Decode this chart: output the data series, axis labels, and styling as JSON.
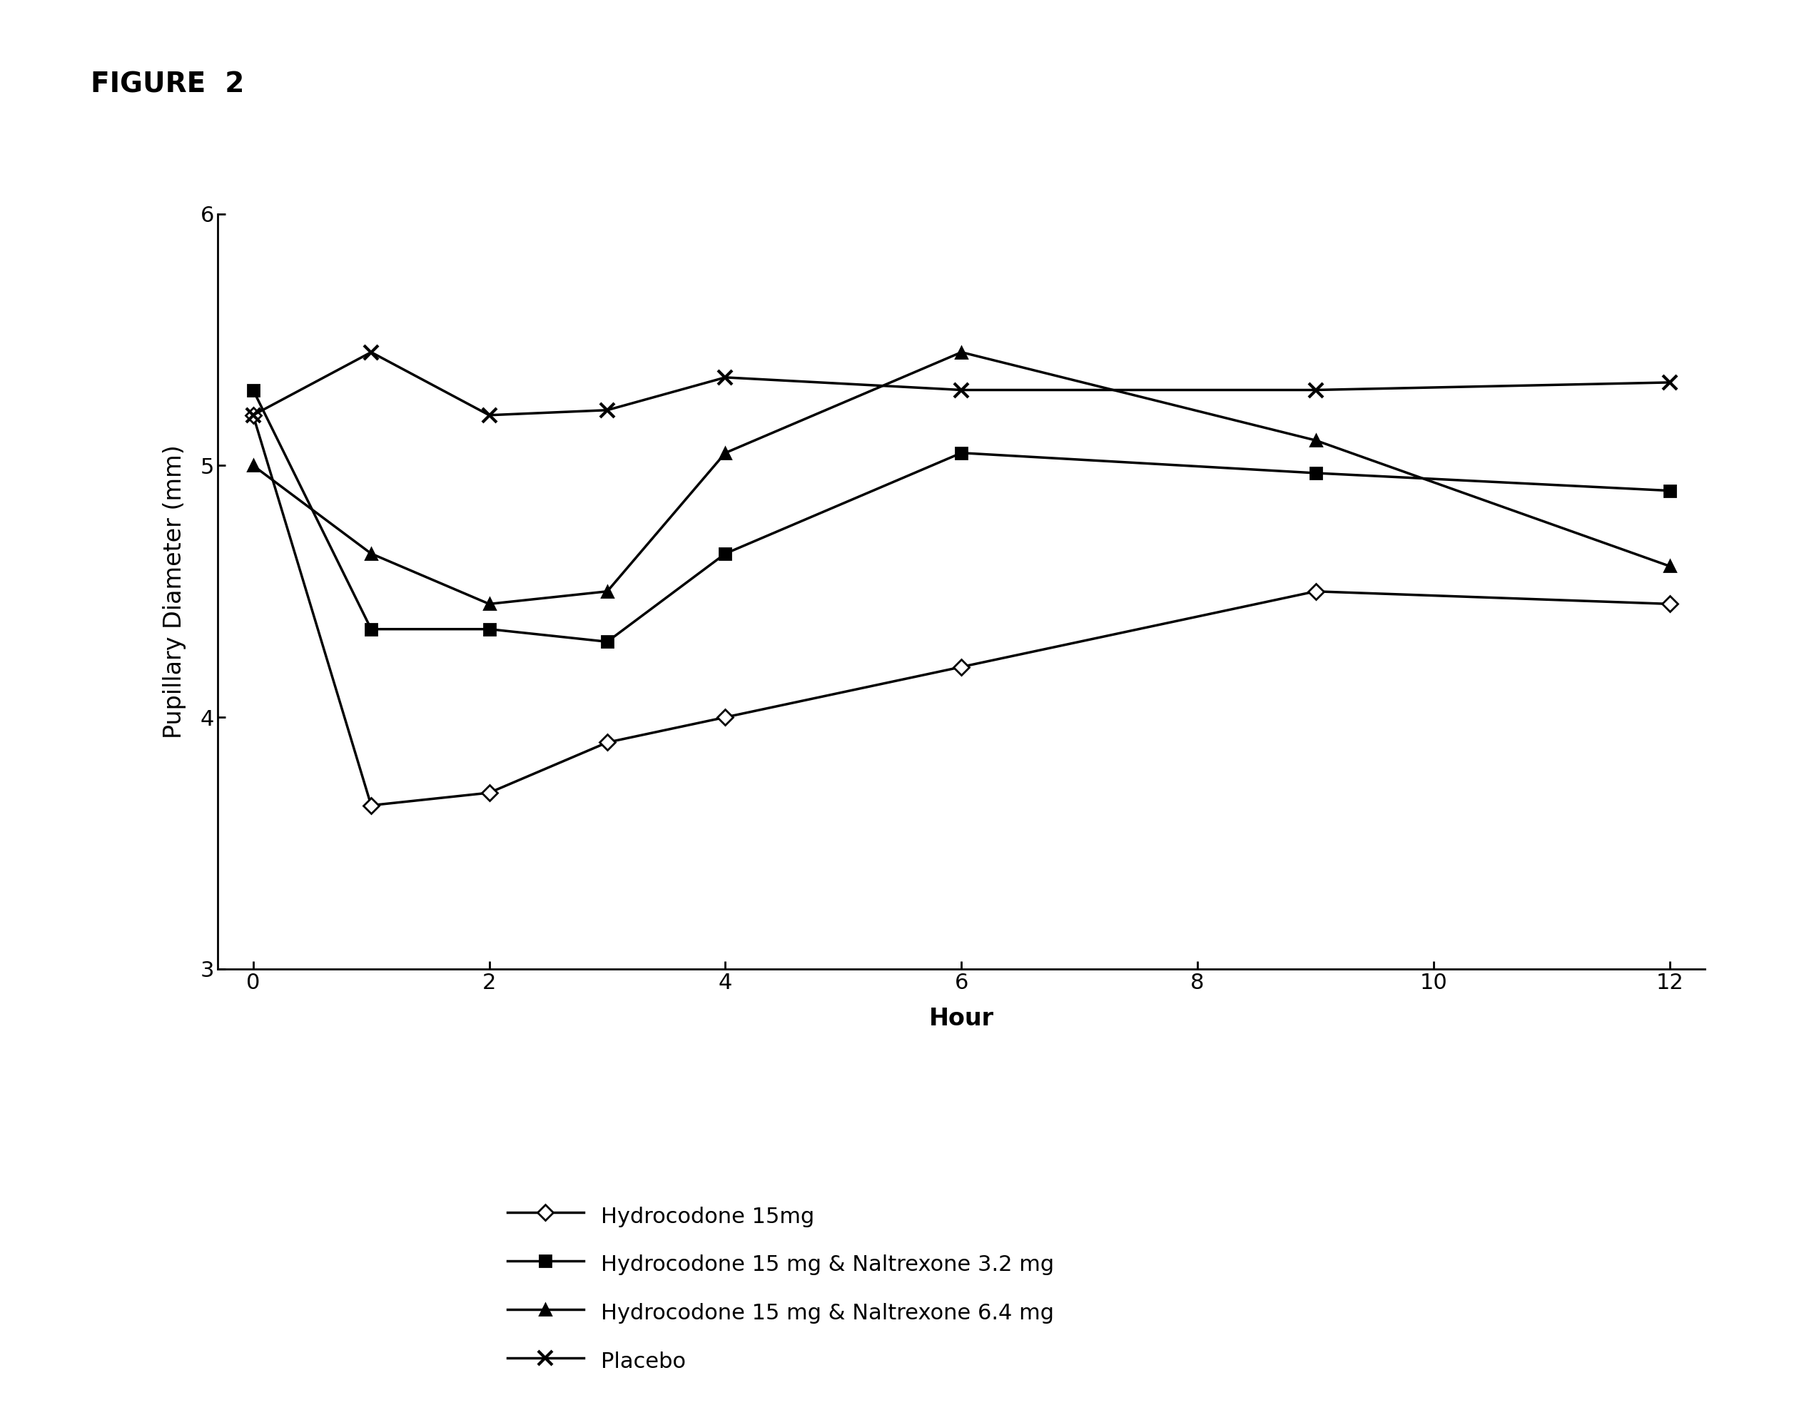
{
  "title": "FIGURE  2",
  "xlabel": "Hour",
  "ylabel": "Pupillary Diameter (mm)",
  "x_ticks": [
    0,
    2,
    4,
    6,
    8,
    10,
    12
  ],
  "xlim": [
    -0.3,
    12.3
  ],
  "ylim": [
    3,
    6
  ],
  "y_ticks": [
    3,
    4,
    5,
    6
  ],
  "series": [
    {
      "label": "Hydrocodone 15mg",
      "x": [
        0,
        1,
        2,
        3,
        4,
        6,
        9,
        12
      ],
      "y": [
        5.2,
        3.65,
        3.7,
        3.9,
        4.0,
        4.2,
        4.5,
        4.45
      ],
      "marker": "D",
      "marker_size": 11,
      "linestyle": "-",
      "color": "#000000",
      "markerfacecolor": "white",
      "markeredgecolor": "#000000"
    },
    {
      "label": "Hydrocodone 15 mg & Naltrexone 3.2 mg",
      "x": [
        0,
        1,
        2,
        3,
        4,
        6,
        9,
        12
      ],
      "y": [
        5.3,
        4.35,
        4.35,
        4.3,
        4.65,
        5.05,
        4.97,
        4.9
      ],
      "marker": "s",
      "marker_size": 11,
      "linestyle": "-",
      "color": "#000000",
      "markerfacecolor": "#000000",
      "markeredgecolor": "#000000"
    },
    {
      "label": "Hydrocodone 15 mg & Naltrexone 6.4 mg",
      "x": [
        0,
        1,
        2,
        3,
        4,
        6,
        9,
        12
      ],
      "y": [
        5.0,
        4.65,
        4.45,
        4.5,
        5.05,
        5.45,
        5.1,
        4.6
      ],
      "marker": "^",
      "marker_size": 12,
      "linestyle": "-",
      "color": "#000000",
      "markerfacecolor": "#000000",
      "markeredgecolor": "#000000"
    },
    {
      "label": "Placebo",
      "x": [
        0,
        1,
        2,
        3,
        4,
        6,
        9,
        12
      ],
      "y": [
        5.2,
        5.45,
        5.2,
        5.22,
        5.35,
        5.3,
        5.3,
        5.33
      ],
      "marker": "x",
      "marker_size": 14,
      "linestyle": "-",
      "color": "#000000",
      "markerfacecolor": "#000000",
      "markeredgecolor": "#000000",
      "markeredgewidth": 3
    }
  ],
  "background_color": "#ffffff",
  "fontsize_title": 28,
  "fontsize_axis_label": 24,
  "fontsize_tick": 22,
  "fontsize_legend": 22,
  "linewidth": 2.5,
  "markeredgewidth": 2.0
}
